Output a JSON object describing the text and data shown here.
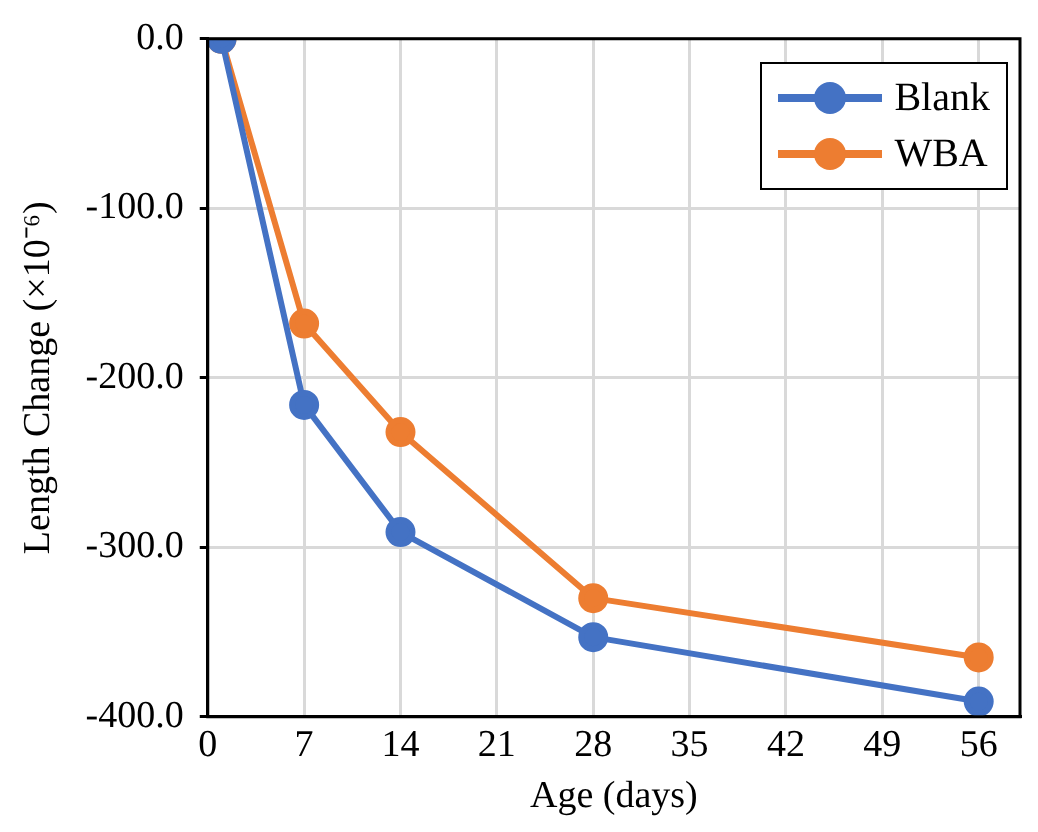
{
  "chart_data": {
    "type": "line",
    "xlabel": "Age (days)",
    "ylabel": "Length Change (×10⁻⁶)",
    "xlim": [
      0,
      59
    ],
    "xticks": [
      0,
      7,
      14,
      21,
      28,
      35,
      42,
      49,
      56
    ],
    "ylim": [
      -400,
      0
    ],
    "yticks": [
      {
        "value": -400,
        "label": "-400.0"
      },
      {
        "value": -300,
        "label": "-300.0"
      },
      {
        "value": -200,
        "label": "-200.0"
      },
      {
        "value": -100,
        "label": "-100.0"
      },
      {
        "value": 0,
        "label": "0.0"
      }
    ],
    "x": [
      1,
      7,
      14,
      28,
      56
    ],
    "series": [
      {
        "name": "Blank",
        "color": "#4472c4",
        "values": [
          0,
          -216,
          -291,
          -353,
          -391
        ]
      },
      {
        "name": "WBA",
        "color": "#ed7d31",
        "values": [
          0,
          -168,
          -232,
          -330,
          -365
        ]
      }
    ],
    "grid": true,
    "legend": "top right",
    "marker": "circle",
    "line_style": "solid"
  }
}
